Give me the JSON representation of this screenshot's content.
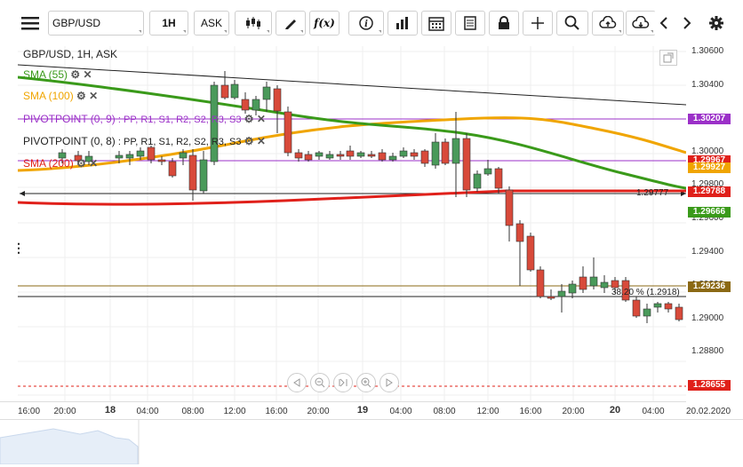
{
  "toolbar": {
    "symbol": "GBP/USD",
    "timeframe": "1H",
    "price_type": "ASK",
    "fx_label": "f(x)"
  },
  "chart": {
    "title": "GBP/USD, 1H, ASK",
    "legend": [
      {
        "label": "SMA (55)",
        "color": "#3a9a1a"
      },
      {
        "label": "SMA (100)",
        "color": "#f0a500"
      },
      {
        "label": "PIVOTPOINT (0, 9)",
        "suffix": ": PP, R1, S1, R2, S2, R3, S3",
        "color": "#9b30c8"
      },
      {
        "label": "PIVOTPOINT (0, 8)",
        "suffix": ": PP, R1, S1, R2, S2, R3, S3",
        "color": "#222222"
      },
      {
        "label": "SMA (200)",
        "color": "#e0201a"
      }
    ],
    "annotations": {
      "hline_label": "1.29777",
      "fib_label": "38.20 % (1.2918)"
    }
  },
  "price_axis": {
    "ticks": [
      "1.30600",
      "1.30400",
      "1.30200",
      "1.30000",
      "1.29800",
      "1.29600",
      "1.29400",
      "1.29200",
      "1.29000",
      "1.28800",
      "1.28600"
    ],
    "tags": [
      {
        "value": "1.30207",
        "color": "#9b30c8"
      },
      {
        "value": "1.29967",
        "color": "#e0201a"
      },
      {
        "value": "1.29927",
        "color": "#f0a500"
      },
      {
        "value": "1.29788",
        "color": "#e0201a"
      },
      {
        "value": "1.29666",
        "color": "#3a9a1a"
      },
      {
        "value": "1.29236",
        "color": "#8b6914"
      },
      {
        "value": "1.28655",
        "color": "#e0201a"
      }
    ]
  },
  "time_axis": {
    "labels": [
      {
        "text": "16:00"
      },
      {
        "text": "20:00"
      },
      {
        "text": "18",
        "bold": true
      },
      {
        "text": "04:00"
      },
      {
        "text": "08:00"
      },
      {
        "text": "12:00"
      },
      {
        "text": "16:00"
      },
      {
        "text": "20:00"
      },
      {
        "text": "19",
        "bold": true
      },
      {
        "text": "04:00"
      },
      {
        "text": "08:00"
      },
      {
        "text": "12:00"
      },
      {
        "text": "16:00"
      },
      {
        "text": "20:00"
      },
      {
        "text": "20",
        "bold": true
      },
      {
        "text": "04:00"
      },
      {
        "text": "20.02.2020"
      }
    ]
  }
}
